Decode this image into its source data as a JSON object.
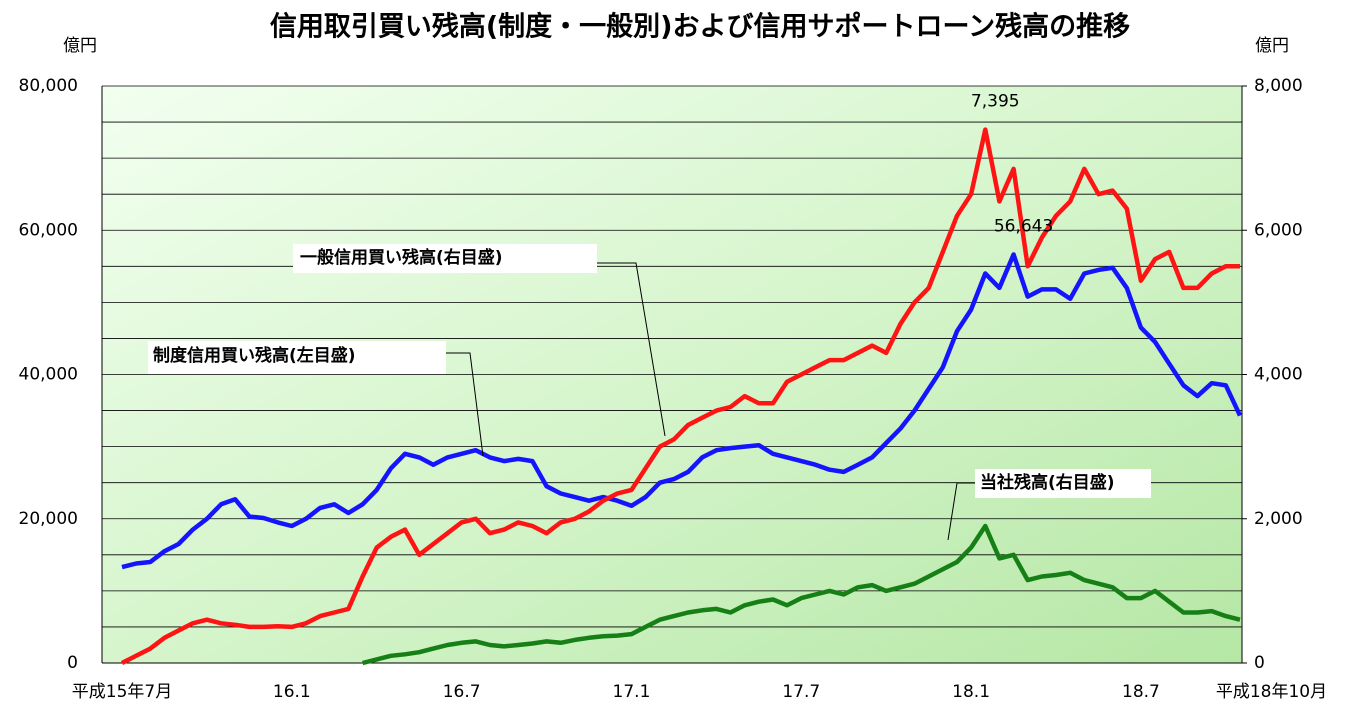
{
  "chart_data": {
    "type": "line",
    "title": "信用取引買い残高(制度・一般別)および信用サポートローン残高の推移",
    "ylabel": "億円",
    "y2label": "億円",
    "categories": [
      "平成15年7月",
      null,
      null,
      null,
      null,
      null,
      null,
      null,
      null,
      null,
      null,
      null,
      "16.1",
      null,
      null,
      null,
      null,
      null,
      null,
      null,
      null,
      null,
      null,
      null,
      "16.7",
      null,
      null,
      null,
      null,
      null,
      null,
      null,
      null,
      null,
      null,
      null,
      "17.1",
      null,
      null,
      null,
      null,
      null,
      null,
      null,
      null,
      null,
      null,
      null,
      "17.7",
      null,
      null,
      null,
      null,
      null,
      null,
      null,
      null,
      null,
      null,
      null,
      "18.1",
      null,
      null,
      null,
      null,
      null,
      null,
      null,
      null,
      null,
      null,
      null,
      "18.7",
      null,
      null,
      null,
      null,
      null,
      "平成18年10月",
      null
    ],
    "ylim": [
      0,
      80000
    ],
    "yticks": [
      {
        "value": 0,
        "label": "0"
      },
      {
        "value": 20000,
        "label": "20,000"
      },
      {
        "value": 40000,
        "label": "40,000"
      },
      {
        "value": 60000,
        "label": "60,000"
      },
      {
        "value": 80000,
        "label": "80,000"
      }
    ],
    "yminor": [
      5000,
      10000,
      15000,
      25000,
      30000,
      35000,
      45000,
      50000,
      55000,
      65000,
      70000,
      75000
    ],
    "y2lim": [
      0,
      8000
    ],
    "y2ticks": [
      {
        "value": 0,
        "label": "0"
      },
      {
        "value": 2000,
        "label": "2,000"
      },
      {
        "value": 4000,
        "label": "4,000"
      },
      {
        "value": 6000,
        "label": "6,000"
      },
      {
        "value": 8000,
        "label": "8,000"
      }
    ],
    "grid": true,
    "series": [
      {
        "name": "制度信用買い残高(左目盛)",
        "color": "#1414ff",
        "axis": "y",
        "values": [
          13300,
          13800,
          14000,
          15500,
          16500,
          18500,
          20000,
          22000,
          22700,
          20300,
          20100,
          19500,
          19000,
          20000,
          21500,
          22000,
          20800,
          22000,
          24000,
          27000,
          29000,
          28500,
          27500,
          28500,
          29000,
          29500,
          28500,
          28000,
          28300,
          28000,
          24500,
          23500,
          23000,
          22500,
          23000,
          22500,
          21800,
          23000,
          25000,
          25500,
          26500,
          28500,
          29500,
          29800,
          30000,
          30200,
          29000,
          28500,
          28000,
          27500,
          26800,
          26500,
          27500,
          28500,
          30500,
          32500,
          35000,
          38000,
          41000,
          46000,
          49000,
          54000,
          52000,
          56643,
          50800,
          51800,
          51800,
          50500,
          54000,
          54500,
          54800,
          52000,
          46500,
          44500,
          41500,
          38500,
          37000,
          38800,
          38500,
          34300
        ],
        "value_labels": [
          null,
          null,
          null,
          null,
          null,
          null,
          null,
          null,
          null,
          null,
          null,
          null,
          null,
          null,
          null,
          null,
          null,
          null,
          null,
          null,
          null,
          null,
          null,
          null,
          null,
          null,
          null,
          null,
          null,
          null,
          null,
          null,
          null,
          null,
          null,
          null,
          null,
          null,
          null,
          null,
          null,
          null,
          null,
          null,
          null,
          null,
          null,
          null,
          null,
          null,
          null,
          null,
          null,
          null,
          null,
          null,
          null,
          null,
          null,
          null,
          null,
          null,
          null,
          "56,643",
          null,
          null,
          null,
          null,
          null,
          null,
          null,
          null,
          null,
          null,
          null,
          null,
          null,
          null,
          null,
          null
        ]
      },
      {
        "name": "一般信用買い残高(右目盛)",
        "color": "#ff1414",
        "axis": "y2",
        "values": [
          0,
          100,
          200,
          350,
          450,
          550,
          600,
          550,
          530,
          500,
          500,
          510,
          500,
          550,
          650,
          700,
          750,
          1200,
          1600,
          1750,
          1850,
          1500,
          1650,
          1800,
          1950,
          2000,
          1800,
          1850,
          1950,
          1900,
          1800,
          1950,
          2000,
          2100,
          2250,
          2350,
          2400,
          2700,
          3000,
          3100,
          3300,
          3400,
          3500,
          3550,
          3700,
          3600,
          3600,
          3900,
          4000,
          4100,
          4200,
          4200,
          4300,
          4400,
          4300,
          4700,
          5000,
          5200,
          5700,
          6200,
          6500,
          7395,
          6400,
          6850,
          5500,
          5900,
          6200,
          6400,
          6850,
          6500,
          6550,
          6300,
          5300,
          5600,
          5700,
          5200,
          5200,
          5400,
          5500,
          5500
        ],
        "value_labels": [
          null,
          null,
          null,
          null,
          null,
          null,
          null,
          null,
          null,
          null,
          null,
          null,
          null,
          null,
          null,
          null,
          null,
          null,
          null,
          null,
          null,
          null,
          null,
          null,
          null,
          null,
          null,
          null,
          null,
          null,
          null,
          null,
          null,
          null,
          null,
          null,
          null,
          null,
          null,
          null,
          null,
          null,
          null,
          null,
          null,
          null,
          null,
          null,
          null,
          null,
          null,
          null,
          null,
          null,
          null,
          null,
          null,
          null,
          null,
          null,
          null,
          "7,395",
          null,
          null,
          null,
          null,
          null,
          null,
          null,
          null,
          null,
          null,
          null,
          null,
          null,
          null,
          null,
          null,
          null,
          null
        ]
      },
      {
        "name": "当社残高(右目盛)",
        "color": "#168016",
        "axis": "y2",
        "values": [
          null,
          null,
          null,
          null,
          null,
          null,
          null,
          null,
          null,
          null,
          null,
          null,
          null,
          null,
          null,
          null,
          null,
          0,
          50,
          100,
          120,
          150,
          200,
          250,
          280,
          300,
          250,
          230,
          250,
          270,
          300,
          280,
          320,
          350,
          370,
          380,
          400,
          500,
          600,
          650,
          700,
          730,
          750,
          700,
          800,
          850,
          880,
          800,
          900,
          950,
          1000,
          950,
          1050,
          1080,
          1000,
          1050,
          1100,
          1200,
          1300,
          1400,
          1600,
          1900,
          1450,
          1500,
          1150,
          1200,
          1220,
          1250,
          1150,
          1100,
          1050,
          900,
          900,
          1000,
          850,
          700,
          700,
          720,
          650,
          600
        ]
      }
    ]
  }
}
